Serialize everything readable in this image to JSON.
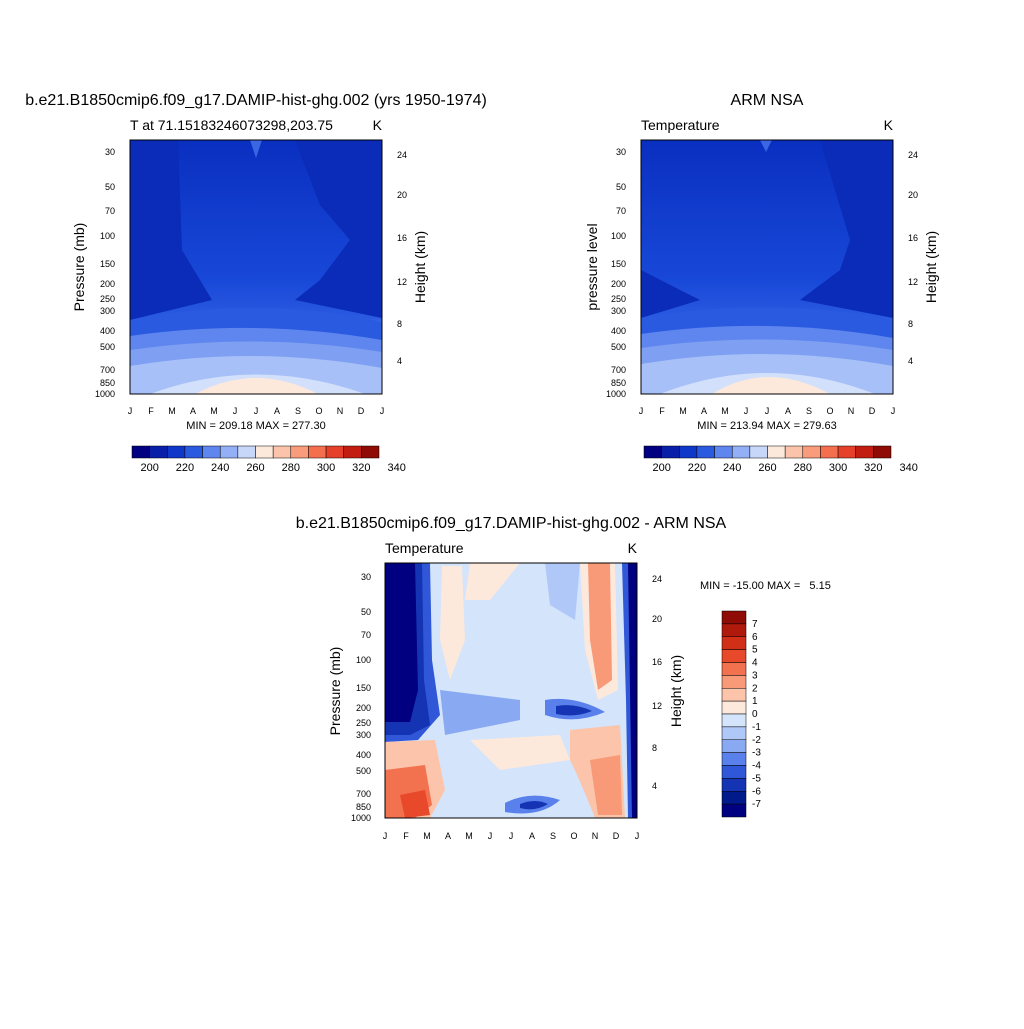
{
  "chart_data": [
    {
      "type": "heatmap",
      "title": "b.e21.B1850cmip6.f09_g17.DAMIP-hist-ghg.002 (yrs 1950-1974)",
      "subtitle": "T at 71.15183246073298,203.75",
      "units": "K",
      "ylabel": "Pressure (mb)",
      "ylabel_right": "Height (km)",
      "x_ticks": [
        "J",
        "F",
        "M",
        "A",
        "M",
        "J",
        "J",
        "A",
        "S",
        "O",
        "N",
        "D",
        "J"
      ],
      "y_ticks": [
        "30",
        "50",
        "70",
        "100",
        "150",
        "200",
        "250",
        "300",
        "400",
        "500",
        "700",
        "850",
        "1000"
      ],
      "y_right_ticks": [
        "24",
        "20",
        "16",
        "12",
        "8",
        "4"
      ],
      "stats": "MIN = 209.18 MAX = 277.30",
      "colorbar_labels": [
        "200",
        "220",
        "240",
        "260",
        "280",
        "300",
        "320",
        "340"
      ]
    },
    {
      "type": "heatmap",
      "title": "ARM NSA",
      "subtitle": "Temperature",
      "units": "K",
      "ylabel": "pressure level",
      "ylabel_right": "Height (km)",
      "x_ticks": [
        "J",
        "F",
        "M",
        "A",
        "M",
        "J",
        "J",
        "A",
        "S",
        "O",
        "N",
        "D",
        "J"
      ],
      "y_ticks": [
        "30",
        "50",
        "70",
        "100",
        "150",
        "200",
        "250",
        "300",
        "400",
        "500",
        "700",
        "850",
        "1000"
      ],
      "y_right_ticks": [
        "24",
        "20",
        "16",
        "12",
        "8",
        "4"
      ],
      "stats": "MIN = 213.94 MAX = 279.63",
      "colorbar_labels": [
        "200",
        "220",
        "240",
        "260",
        "280",
        "300",
        "320",
        "340"
      ]
    },
    {
      "type": "heatmap",
      "title": "b.e21.B1850cmip6.f09_g17.DAMIP-hist-ghg.002 - ARM NSA",
      "subtitle": "Temperature",
      "units": "K",
      "ylabel": "Pressure (mb)",
      "ylabel_right": "Height (km)",
      "x_ticks": [
        "J",
        "F",
        "M",
        "A",
        "M",
        "J",
        "J",
        "A",
        "S",
        "O",
        "N",
        "D",
        "J"
      ],
      "y_ticks": [
        "30",
        "50",
        "70",
        "100",
        "150",
        "200",
        "250",
        "300",
        "400",
        "500",
        "700",
        "850",
        "1000"
      ],
      "y_right_ticks": [
        "24",
        "20",
        "16",
        "12",
        "8",
        "4"
      ],
      "stats": "MIN = -15.00 MAX =   5.15",
      "colorbar_labels": [
        "7",
        "6",
        "5",
        "4",
        "3",
        "2",
        "1",
        "0",
        "-1",
        "-2",
        "-3",
        "-4",
        "-5",
        "-6",
        "-7"
      ]
    }
  ],
  "palettes": {
    "absolute": [
      "#000080",
      "#0a1fa8",
      "#1038c8",
      "#2a5ae0",
      "#5e86ee",
      "#93aff5",
      "#c6d7fa",
      "#fde9dc",
      "#fbc4aa",
      "#f89c7c",
      "#f36f4e",
      "#e6402a",
      "#c31d12",
      "#8e0b06"
    ],
    "difference": [
      "#8e0b06",
      "#b01a0d",
      "#d12f17",
      "#e8492a",
      "#f2714f",
      "#f89a78",
      "#fcc4aa",
      "#fde9dc",
      "#d4e4fa",
      "#afc8f7",
      "#89a9f2",
      "#5a80eb",
      "#2f57d8",
      "#1434b3",
      "#001a8c",
      "#000080"
    ]
  }
}
